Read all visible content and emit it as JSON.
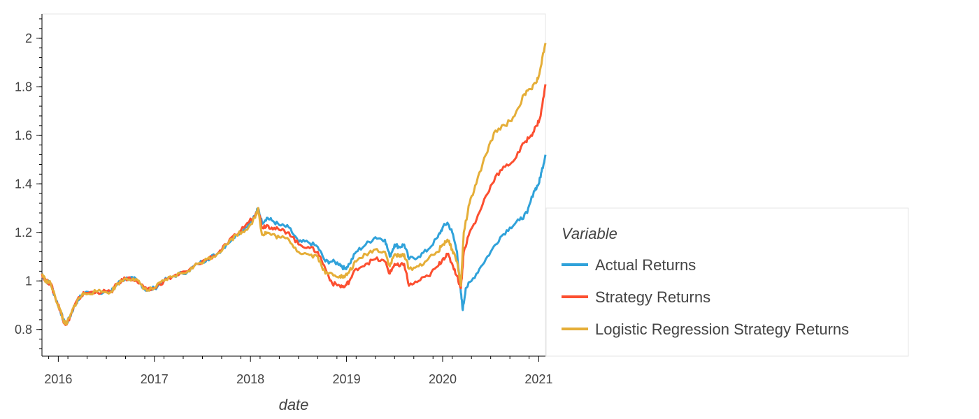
{
  "chart_data": {
    "type": "line",
    "title": "",
    "xlabel": "date",
    "ylabel": "",
    "xlim": [
      2015.83,
      2021.07
    ],
    "ylim": [
      0.69,
      2.1
    ],
    "x_ticks": [
      {
        "value": 2016,
        "label": "2016"
      },
      {
        "value": 2017,
        "label": "2017"
      },
      {
        "value": 2018,
        "label": "2018"
      },
      {
        "value": 2019,
        "label": "2019"
      },
      {
        "value": 2020,
        "label": "2020"
      },
      {
        "value": 2021,
        "label": "2021"
      }
    ],
    "y_ticks": [
      {
        "value": 0.8,
        "label": "0.8"
      },
      {
        "value": 1.0,
        "label": "1"
      },
      {
        "value": 1.2,
        "label": "1.2"
      },
      {
        "value": 1.4,
        "label": "1.4"
      },
      {
        "value": 1.6,
        "label": "1.6"
      },
      {
        "value": 1.8,
        "label": "1.8"
      },
      {
        "value": 2.0,
        "label": "2"
      }
    ],
    "grid": false,
    "legend": {
      "title": "Variable",
      "placement": "right"
    },
    "series": [
      {
        "name": "Actual Returns",
        "color": "#30a2da",
        "points": [
          [
            2015.83,
            1.03
          ],
          [
            2015.87,
            1.0
          ],
          [
            2015.92,
            0.99
          ],
          [
            2015.97,
            0.93
          ],
          [
            2016.02,
            0.88
          ],
          [
            2016.05,
            0.84
          ],
          [
            2016.08,
            0.82
          ],
          [
            2016.12,
            0.85
          ],
          [
            2016.17,
            0.9
          ],
          [
            2016.22,
            0.93
          ],
          [
            2016.27,
            0.95
          ],
          [
            2016.4,
            0.955
          ],
          [
            2016.55,
            0.955
          ],
          [
            2016.62,
            0.99
          ],
          [
            2016.7,
            1.01
          ],
          [
            2016.78,
            1.01
          ],
          [
            2016.85,
            0.99
          ],
          [
            2016.92,
            0.96
          ],
          [
            2017.0,
            0.97
          ],
          [
            2017.1,
            1.0
          ],
          [
            2017.2,
            1.02
          ],
          [
            2017.35,
            1.04
          ],
          [
            2017.45,
            1.07
          ],
          [
            2017.55,
            1.09
          ],
          [
            2017.65,
            1.11
          ],
          [
            2017.75,
            1.15
          ],
          [
            2017.85,
            1.19
          ],
          [
            2017.95,
            1.22
          ],
          [
            2018.05,
            1.27
          ],
          [
            2018.08,
            1.3
          ],
          [
            2018.12,
            1.24
          ],
          [
            2018.17,
            1.26
          ],
          [
            2018.22,
            1.25
          ],
          [
            2018.3,
            1.23
          ],
          [
            2018.4,
            1.22
          ],
          [
            2018.5,
            1.16
          ],
          [
            2018.6,
            1.16
          ],
          [
            2018.7,
            1.14
          ],
          [
            2018.78,
            1.08
          ],
          [
            2018.85,
            1.08
          ],
          [
            2018.93,
            1.07
          ],
          [
            2018.98,
            1.05
          ],
          [
            2019.03,
            1.07
          ],
          [
            2019.1,
            1.12
          ],
          [
            2019.2,
            1.15
          ],
          [
            2019.3,
            1.18
          ],
          [
            2019.4,
            1.17
          ],
          [
            2019.45,
            1.1
          ],
          [
            2019.5,
            1.15
          ],
          [
            2019.55,
            1.14
          ],
          [
            2019.6,
            1.15
          ],
          [
            2019.65,
            1.09
          ],
          [
            2019.75,
            1.1
          ],
          [
            2019.85,
            1.13
          ],
          [
            2019.95,
            1.18
          ],
          [
            2020.0,
            1.22
          ],
          [
            2020.05,
            1.24
          ],
          [
            2020.1,
            1.2
          ],
          [
            2020.15,
            1.12
          ],
          [
            2020.19,
            0.95
          ],
          [
            2020.21,
            0.88
          ],
          [
            2020.24,
            0.97
          ],
          [
            2020.3,
            1.0
          ],
          [
            2020.4,
            1.06
          ],
          [
            2020.5,
            1.12
          ],
          [
            2020.6,
            1.18
          ],
          [
            2020.7,
            1.22
          ],
          [
            2020.8,
            1.25
          ],
          [
            2020.88,
            1.28
          ],
          [
            2020.95,
            1.37
          ],
          [
            2021.0,
            1.4
          ],
          [
            2021.03,
            1.45
          ],
          [
            2021.07,
            1.52
          ]
        ]
      },
      {
        "name": "Strategy Returns",
        "color": "#fc4f30",
        "points": [
          [
            2015.83,
            1.03
          ],
          [
            2015.87,
            1.0
          ],
          [
            2015.92,
            0.99
          ],
          [
            2015.97,
            0.93
          ],
          [
            2016.02,
            0.88
          ],
          [
            2016.05,
            0.84
          ],
          [
            2016.08,
            0.82
          ],
          [
            2016.12,
            0.85
          ],
          [
            2016.17,
            0.9
          ],
          [
            2016.22,
            0.93
          ],
          [
            2016.27,
            0.95
          ],
          [
            2016.4,
            0.955
          ],
          [
            2016.55,
            0.955
          ],
          [
            2016.62,
            0.99
          ],
          [
            2016.7,
            1.01
          ],
          [
            2016.78,
            1.01
          ],
          [
            2016.85,
            0.99
          ],
          [
            2016.92,
            0.96
          ],
          [
            2017.0,
            0.97
          ],
          [
            2017.1,
            1.0
          ],
          [
            2017.2,
            1.02
          ],
          [
            2017.35,
            1.04
          ],
          [
            2017.45,
            1.07
          ],
          [
            2017.55,
            1.09
          ],
          [
            2017.65,
            1.11
          ],
          [
            2017.75,
            1.15
          ],
          [
            2017.85,
            1.19
          ],
          [
            2017.95,
            1.23
          ],
          [
            2018.05,
            1.27
          ],
          [
            2018.08,
            1.3
          ],
          [
            2018.12,
            1.22
          ],
          [
            2018.17,
            1.23
          ],
          [
            2018.22,
            1.22
          ],
          [
            2018.3,
            1.21
          ],
          [
            2018.4,
            1.2
          ],
          [
            2018.5,
            1.15
          ],
          [
            2018.6,
            1.14
          ],
          [
            2018.7,
            1.12
          ],
          [
            2018.78,
            1.05
          ],
          [
            2018.85,
            0.99
          ],
          [
            2018.93,
            0.98
          ],
          [
            2018.98,
            0.975
          ],
          [
            2019.03,
            1.0
          ],
          [
            2019.1,
            1.05
          ],
          [
            2019.2,
            1.07
          ],
          [
            2019.3,
            1.09
          ],
          [
            2019.4,
            1.08
          ],
          [
            2019.45,
            1.03
          ],
          [
            2019.5,
            1.07
          ],
          [
            2019.55,
            1.06
          ],
          [
            2019.6,
            1.07
          ],
          [
            2019.65,
            0.98
          ],
          [
            2019.75,
            1.0
          ],
          [
            2019.85,
            1.02
          ],
          [
            2019.95,
            1.06
          ],
          [
            2020.0,
            1.09
          ],
          [
            2020.05,
            1.11
          ],
          [
            2020.1,
            1.07
          ],
          [
            2020.15,
            1.02
          ],
          [
            2020.19,
            0.97
          ],
          [
            2020.22,
            1.12
          ],
          [
            2020.28,
            1.2
          ],
          [
            2020.35,
            1.25
          ],
          [
            2020.45,
            1.35
          ],
          [
            2020.55,
            1.43
          ],
          [
            2020.65,
            1.47
          ],
          [
            2020.75,
            1.5
          ],
          [
            2020.85,
            1.57
          ],
          [
            2020.92,
            1.6
          ],
          [
            2020.98,
            1.64
          ],
          [
            2021.02,
            1.68
          ],
          [
            2021.07,
            1.81
          ]
        ]
      },
      {
        "name": "Logistic Regression Strategy Returns",
        "color": "#e5ae38",
        "points": [
          [
            2015.83,
            1.03
          ],
          [
            2015.87,
            1.0
          ],
          [
            2015.92,
            0.99
          ],
          [
            2015.97,
            0.93
          ],
          [
            2016.02,
            0.88
          ],
          [
            2016.05,
            0.84
          ],
          [
            2016.08,
            0.82
          ],
          [
            2016.12,
            0.85
          ],
          [
            2016.17,
            0.9
          ],
          [
            2016.22,
            0.93
          ],
          [
            2016.27,
            0.95
          ],
          [
            2016.4,
            0.955
          ],
          [
            2016.55,
            0.955
          ],
          [
            2016.62,
            0.99
          ],
          [
            2016.7,
            1.01
          ],
          [
            2016.78,
            1.01
          ],
          [
            2016.85,
            0.99
          ],
          [
            2016.92,
            0.96
          ],
          [
            2017.0,
            0.97
          ],
          [
            2017.1,
            1.0
          ],
          [
            2017.2,
            1.02
          ],
          [
            2017.35,
            1.04
          ],
          [
            2017.45,
            1.07
          ],
          [
            2017.55,
            1.09
          ],
          [
            2017.65,
            1.11
          ],
          [
            2017.75,
            1.15
          ],
          [
            2017.85,
            1.19
          ],
          [
            2017.95,
            1.21
          ],
          [
            2018.05,
            1.26
          ],
          [
            2018.08,
            1.3
          ],
          [
            2018.12,
            1.19
          ],
          [
            2018.17,
            1.2
          ],
          [
            2018.22,
            1.19
          ],
          [
            2018.3,
            1.18
          ],
          [
            2018.4,
            1.17
          ],
          [
            2018.5,
            1.12
          ],
          [
            2018.6,
            1.11
          ],
          [
            2018.7,
            1.1
          ],
          [
            2018.78,
            1.03
          ],
          [
            2018.85,
            1.03
          ],
          [
            2018.93,
            1.02
          ],
          [
            2018.98,
            1.015
          ],
          [
            2019.03,
            1.04
          ],
          [
            2019.1,
            1.08
          ],
          [
            2019.2,
            1.11
          ],
          [
            2019.3,
            1.13
          ],
          [
            2019.4,
            1.12
          ],
          [
            2019.45,
            1.06
          ],
          [
            2019.5,
            1.11
          ],
          [
            2019.55,
            1.1
          ],
          [
            2019.6,
            1.11
          ],
          [
            2019.65,
            1.05
          ],
          [
            2019.75,
            1.06
          ],
          [
            2019.85,
            1.09
          ],
          [
            2019.95,
            1.12
          ],
          [
            2020.0,
            1.15
          ],
          [
            2020.05,
            1.17
          ],
          [
            2020.1,
            1.13
          ],
          [
            2020.15,
            1.08
          ],
          [
            2020.19,
            0.98
          ],
          [
            2020.22,
            1.2
          ],
          [
            2020.28,
            1.32
          ],
          [
            2020.35,
            1.4
          ],
          [
            2020.45,
            1.52
          ],
          [
            2020.55,
            1.62
          ],
          [
            2020.65,
            1.64
          ],
          [
            2020.75,
            1.68
          ],
          [
            2020.85,
            1.77
          ],
          [
            2020.92,
            1.79
          ],
          [
            2020.98,
            1.82
          ],
          [
            2021.02,
            1.88
          ],
          [
            2021.07,
            1.98
          ]
        ]
      }
    ]
  }
}
